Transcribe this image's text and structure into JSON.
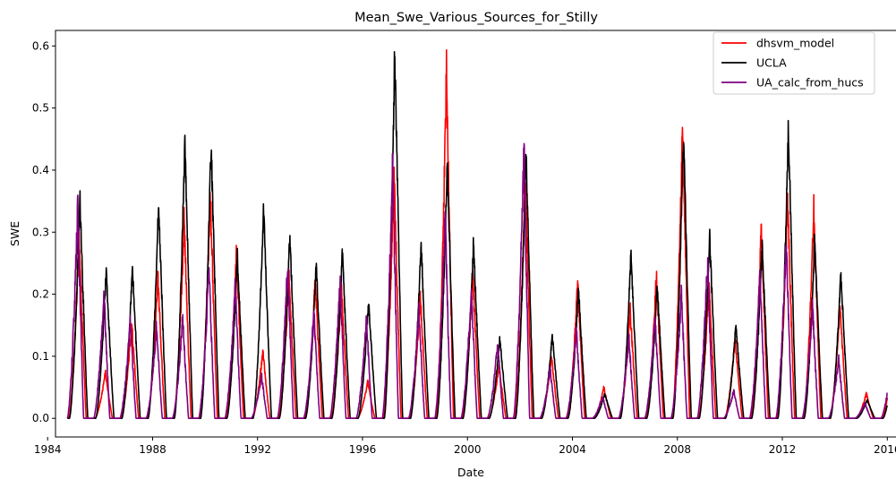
{
  "chart_data": {
    "type": "line",
    "title": "Mean_Swe_Various_Sources_for_Stilly",
    "xlabel": "Date",
    "ylabel": "SWE",
    "xlim": [
      1984.3,
      2016.4
    ],
    "ylim": [
      -0.03,
      0.625
    ],
    "x_ticks": [
      1984,
      1988,
      1992,
      1996,
      2000,
      2004,
      2008,
      2012,
      2016
    ],
    "y_ticks": [
      0.0,
      0.1,
      0.2,
      0.3,
      0.4,
      0.5,
      0.6
    ],
    "y_tick_labels": [
      "0.0",
      "0.1",
      "0.2",
      "0.3",
      "0.4",
      "0.5",
      "0.6"
    ],
    "grid": false,
    "legend_position": "top-right",
    "x_start": 1984.75,
    "x_end": 2016.0,
    "water_years": [
      1985,
      1986,
      1987,
      1988,
      1989,
      1990,
      1991,
      1992,
      1993,
      1994,
      1995,
      1996,
      1997,
      1998,
      1999,
      2000,
      2001,
      2002,
      2003,
      2004,
      2005,
      2006,
      2007,
      2008,
      2009,
      2010,
      2011,
      2012,
      2013,
      2014,
      2015,
      2016
    ],
    "series": [
      {
        "name": "dhsvm_model",
        "color": "#ff0000",
        "peaks": [
          0.29,
          0.075,
          0.155,
          0.23,
          0.32,
          0.365,
          0.27,
          0.11,
          0.235,
          0.225,
          0.21,
          0.06,
          0.4,
          0.2,
          0.555,
          0.235,
          0.085,
          0.39,
          0.1,
          0.22,
          0.05,
          0.175,
          0.23,
          0.48,
          0.215,
          0.13,
          0.305,
          0.355,
          0.34,
          0.18,
          0.04,
          0.1
        ]
      },
      {
        "name": "UCLA",
        "color": "#000000",
        "peaks": [
          0.355,
          0.24,
          0.245,
          0.35,
          0.45,
          0.445,
          0.265,
          0.34,
          0.295,
          0.25,
          0.27,
          0.19,
          0.595,
          0.285,
          0.415,
          0.285,
          0.13,
          0.435,
          0.135,
          0.21,
          0.04,
          0.265,
          0.215,
          0.46,
          0.295,
          0.15,
          0.28,
          0.475,
          0.29,
          0.235,
          0.03,
          0.085
        ]
      },
      {
        "name": "UA_calc_from_hucs",
        "color": "#800080",
        "peaks": [
          0.34,
          0.2,
          0.16,
          0.15,
          0.16,
          0.24,
          0.215,
          0.07,
          0.25,
          0.17,
          0.225,
          0.16,
          0.405,
          0.175,
          0.325,
          0.21,
          0.12,
          0.44,
          0.08,
          0.145,
          0.035,
          0.13,
          0.16,
          0.2,
          0.25,
          0.045,
          0.23,
          0.29,
          0.185,
          0.095,
          0.025,
          0.085
        ]
      }
    ]
  }
}
